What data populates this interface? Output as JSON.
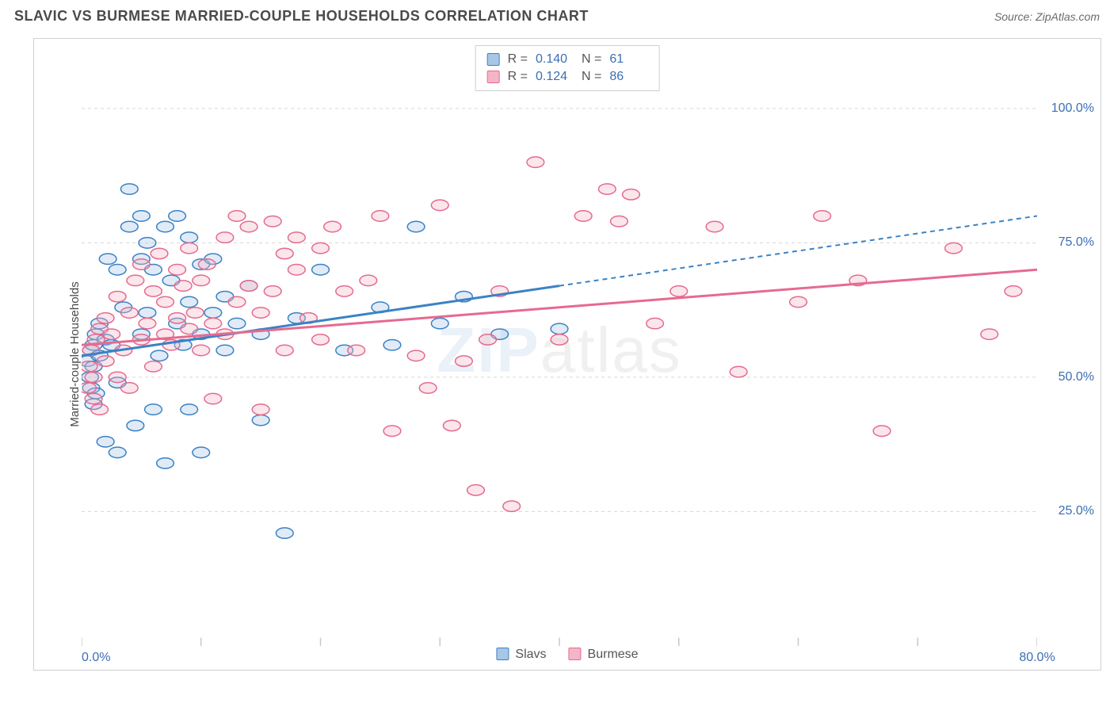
{
  "title": "SLAVIC VS BURMESE MARRIED-COUPLE HOUSEHOLDS CORRELATION CHART",
  "source": "Source: ZipAtlas.com",
  "ylabel": "Married-couple Households",
  "watermark_a": "ZIP",
  "watermark_b": "atlas",
  "chart": {
    "type": "scatter",
    "xlim": [
      0,
      80
    ],
    "ylim": [
      0,
      110
    ],
    "x_tick_step": 10,
    "x_tick_labels": {
      "0": "0.0%",
      "80": "80.0%"
    },
    "y_grid": [
      25,
      50,
      75,
      100
    ],
    "y_tick_labels": {
      "25": "25.0%",
      "50": "50.0%",
      "75": "75.0%",
      "100": "100.0%"
    },
    "background_color": "#ffffff",
    "grid_color": "#d8d8d8",
    "axis_color": "#c8c8c8",
    "point_radius": 9,
    "point_stroke_width": 1.5,
    "point_fill_opacity": 0.35,
    "line_width": 3,
    "dash_pattern": "6,5",
    "series": [
      {
        "name": "Slavs",
        "color_stroke": "#3b82c4",
        "color_fill": "#a7c7e7",
        "r": "0.140",
        "n": "61",
        "trend": {
          "x1": 0,
          "y1": 54,
          "x2": 40,
          "y2": 67,
          "x2_ext": 80,
          "y2_ext": 80
        },
        "points": [
          [
            0.5,
            53
          ],
          [
            0.7,
            50
          ],
          [
            0.8,
            55
          ],
          [
            0.8,
            48
          ],
          [
            1,
            52
          ],
          [
            1,
            56
          ],
          [
            1,
            45
          ],
          [
            1.2,
            58
          ],
          [
            1.2,
            47
          ],
          [
            1.5,
            60
          ],
          [
            1.5,
            54
          ],
          [
            2,
            38
          ],
          [
            2,
            57
          ],
          [
            2.2,
            72
          ],
          [
            2.5,
            56
          ],
          [
            3,
            70
          ],
          [
            3,
            49
          ],
          [
            3,
            36
          ],
          [
            3.5,
            63
          ],
          [
            4,
            85
          ],
          [
            4,
            78
          ],
          [
            4.5,
            41
          ],
          [
            5,
            80
          ],
          [
            5,
            72
          ],
          [
            5,
            58
          ],
          [
            5.5,
            62
          ],
          [
            5.5,
            75
          ],
          [
            6,
            44
          ],
          [
            6,
            70
          ],
          [
            6.5,
            54
          ],
          [
            7,
            78
          ],
          [
            7,
            34
          ],
          [
            7.5,
            68
          ],
          [
            8,
            60
          ],
          [
            8,
            80
          ],
          [
            8.5,
            56
          ],
          [
            9,
            76
          ],
          [
            9,
            64
          ],
          [
            9,
            44
          ],
          [
            10,
            71
          ],
          [
            10,
            58
          ],
          [
            10,
            36
          ],
          [
            11,
            62
          ],
          [
            11,
            72
          ],
          [
            12,
            65
          ],
          [
            12,
            55
          ],
          [
            13,
            60
          ],
          [
            14,
            67
          ],
          [
            15,
            58
          ],
          [
            15,
            42
          ],
          [
            17,
            21
          ],
          [
            18,
            61
          ],
          [
            20,
            70
          ],
          [
            22,
            55
          ],
          [
            25,
            63
          ],
          [
            26,
            56
          ],
          [
            28,
            78
          ],
          [
            30,
            60
          ],
          [
            32,
            65
          ],
          [
            35,
            58
          ],
          [
            40,
            59
          ]
        ]
      },
      {
        "name": "Burmese",
        "color_stroke": "#e66a8f",
        "color_fill": "#f4b6c6",
        "r": "0.124",
        "n": "86",
        "trend": {
          "x1": 0,
          "y1": 56,
          "x2": 80,
          "y2": 70,
          "x2_ext": 80,
          "y2_ext": 70
        },
        "points": [
          [
            0.5,
            48
          ],
          [
            0.6,
            52
          ],
          [
            0.8,
            55
          ],
          [
            1,
            46
          ],
          [
            1,
            50
          ],
          [
            1.2,
            57
          ],
          [
            1.5,
            44
          ],
          [
            1.5,
            59
          ],
          [
            2,
            53
          ],
          [
            2,
            61
          ],
          [
            2.5,
            58
          ],
          [
            3,
            65
          ],
          [
            3,
            50
          ],
          [
            3.5,
            55
          ],
          [
            4,
            62
          ],
          [
            4,
            48
          ],
          [
            4.5,
            68
          ],
          [
            5,
            57
          ],
          [
            5,
            71
          ],
          [
            5.5,
            60
          ],
          [
            6,
            66
          ],
          [
            6,
            52
          ],
          [
            6.5,
            73
          ],
          [
            7,
            58
          ],
          [
            7,
            64
          ],
          [
            7.5,
            56
          ],
          [
            8,
            70
          ],
          [
            8,
            61
          ],
          [
            8.5,
            67
          ],
          [
            9,
            59
          ],
          [
            9,
            74
          ],
          [
            9.5,
            62
          ],
          [
            10,
            68
          ],
          [
            10,
            55
          ],
          [
            10.5,
            71
          ],
          [
            11,
            60
          ],
          [
            11,
            46
          ],
          [
            12,
            76
          ],
          [
            12,
            58
          ],
          [
            13,
            64
          ],
          [
            13,
            80
          ],
          [
            14,
            67
          ],
          [
            14,
            78
          ],
          [
            15,
            62
          ],
          [
            15,
            44
          ],
          [
            16,
            66
          ],
          [
            16,
            79
          ],
          [
            17,
            55
          ],
          [
            17,
            73
          ],
          [
            18,
            70
          ],
          [
            18,
            76
          ],
          [
            19,
            61
          ],
          [
            20,
            74
          ],
          [
            20,
            57
          ],
          [
            21,
            78
          ],
          [
            22,
            66
          ],
          [
            23,
            55
          ],
          [
            24,
            68
          ],
          [
            25,
            80
          ],
          [
            26,
            40
          ],
          [
            28,
            54
          ],
          [
            29,
            48
          ],
          [
            30,
            82
          ],
          [
            31,
            41
          ],
          [
            32,
            53
          ],
          [
            33,
            29
          ],
          [
            34,
            57
          ],
          [
            35,
            66
          ],
          [
            36,
            26
          ],
          [
            38,
            90
          ],
          [
            40,
            57
          ],
          [
            42,
            80
          ],
          [
            44,
            85
          ],
          [
            45,
            79
          ],
          [
            46,
            84
          ],
          [
            48,
            60
          ],
          [
            50,
            66
          ],
          [
            53,
            78
          ],
          [
            55,
            51
          ],
          [
            60,
            64
          ],
          [
            62,
            80
          ],
          [
            65,
            68
          ],
          [
            67,
            40
          ],
          [
            73,
            74
          ],
          [
            76,
            58
          ],
          [
            78,
            66
          ]
        ]
      }
    ]
  },
  "legend_top": {
    "r_label": "R =",
    "n_label": "N ="
  },
  "colors": {
    "title": "#4a4a4a",
    "axis_label": "#3b6fb5",
    "text": "#555555"
  }
}
